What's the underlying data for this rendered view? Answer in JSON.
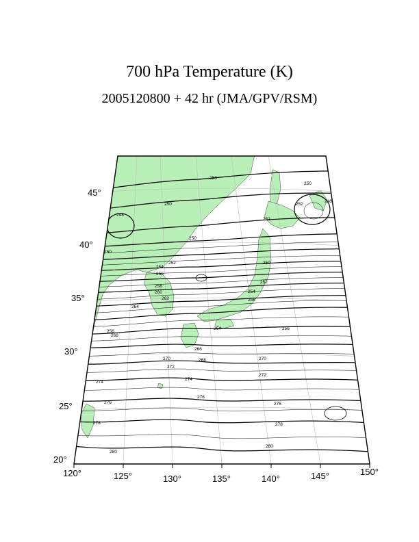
{
  "title": "700 hPa Temperature (K)",
  "subtitle": "2005120800 + 42 hr (JMA/GPV/RSM)",
  "colors": {
    "land": "#b8f0b8",
    "contour": "#000000",
    "grid": "#bdbdbd"
  },
  "lon_labels": [
    "120°",
    "125°",
    "130°",
    "135°",
    "140°",
    "145°",
    "150°"
  ],
  "lat_labels": [
    "20°",
    "25°",
    "30°",
    "35°",
    "40°",
    "45°"
  ],
  "contour_labels": [
    "280",
    "278",
    "276",
    "274",
    "272",
    "270",
    "268",
    "266",
    "264",
    "262",
    "260",
    "258",
    "256",
    "254",
    "252",
    "250",
    "248"
  ]
}
